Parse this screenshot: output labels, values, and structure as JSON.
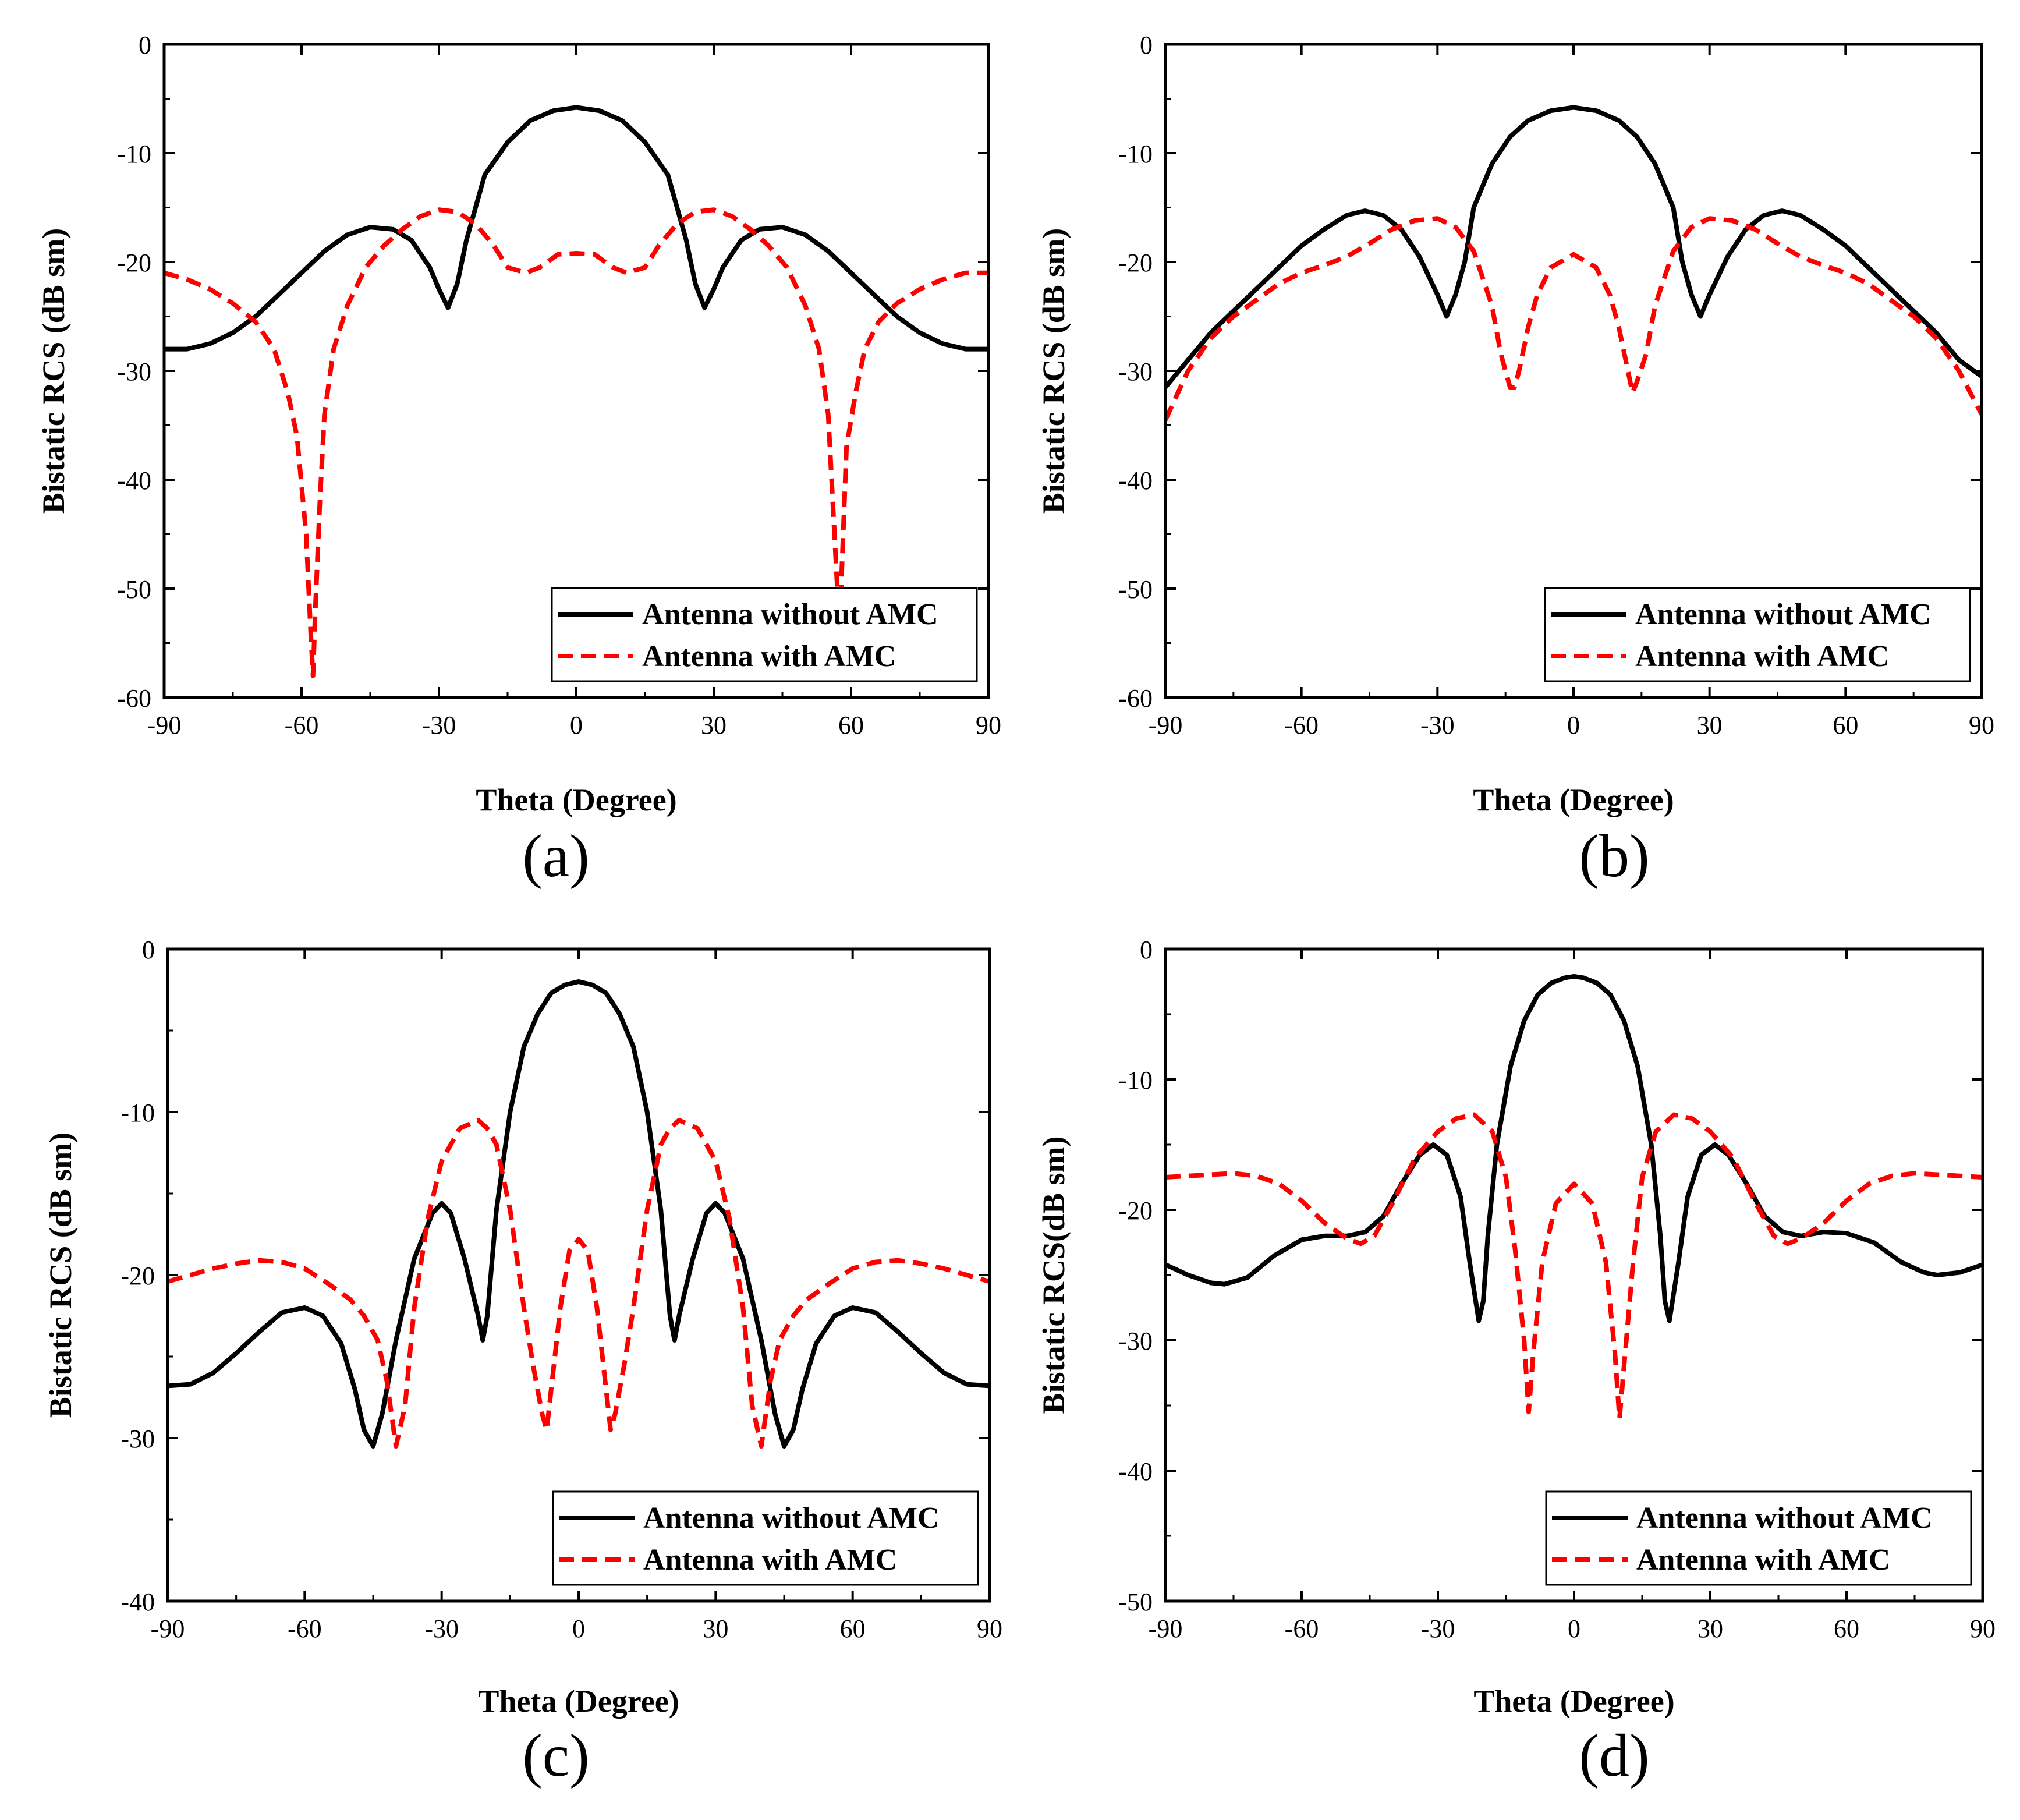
{
  "chart_data": [
    {
      "type": "line",
      "panel_label": "(a)",
      "xlabel": "Theta (Degree)",
      "ylabel": "Bistatic RCS (dB sm)",
      "xlim": [
        -90,
        90
      ],
      "ylim": [
        -60,
        0
      ],
      "xticks": [
        -90,
        -60,
        -30,
        0,
        30,
        60,
        90
      ],
      "yticks": [
        0,
        -10,
        -20,
        -30,
        -40,
        -50,
        -60
      ],
      "legend_position": "bottom-right",
      "series": [
        {
          "name": "Antenna without AMC",
          "color": "#000000",
          "dash": "solid",
          "x": [
            -90,
            -85,
            -80,
            -75,
            -70,
            -65,
            -60,
            -55,
            -50,
            -45,
            -40,
            -36,
            -32,
            -30,
            -28,
            -26,
            -24,
            -22,
            -20,
            -15,
            -10,
            -5,
            0,
            5,
            10,
            15,
            20,
            22,
            24,
            26,
            28,
            30,
            32,
            36,
            40,
            45,
            50,
            55,
            60,
            65,
            70,
            75,
            80,
            85,
            90
          ],
          "y": [
            -28,
            -28,
            -27.5,
            -26.5,
            -25,
            -23,
            -21,
            -19,
            -17.5,
            -16.8,
            -17,
            -18,
            -20.5,
            -22.5,
            -24.2,
            -22,
            -18,
            -15,
            -12,
            -9,
            -7,
            -6.1,
            -5.8,
            -6.1,
            -7,
            -9,
            -12,
            -15,
            -18,
            -22,
            -24.2,
            -22.5,
            -20.5,
            -18,
            -17,
            -16.8,
            -17.5,
            -19,
            -21,
            -23,
            -25,
            -26.5,
            -27.5,
            -28,
            -28
          ]
        },
        {
          "name": "Antenna with AMC",
          "color": "#ff0000",
          "dash": "dashed",
          "x": [
            -90,
            -85,
            -80,
            -75,
            -70,
            -66,
            -63,
            -61,
            -59,
            -58,
            -57.5,
            -57,
            -56,
            -55,
            -53,
            -50,
            -46,
            -42,
            -38,
            -34,
            -30,
            -26,
            -22,
            -18,
            -15,
            -11,
            -8,
            -4,
            0,
            4,
            8,
            11,
            15,
            18,
            22,
            26,
            30,
            34,
            38,
            42,
            46,
            50,
            53,
            55,
            56,
            57,
            57.5,
            58,
            59,
            61,
            63,
            66,
            70,
            75,
            80,
            85,
            90
          ],
          "y": [
            -21,
            -21.6,
            -22.5,
            -23.8,
            -25.5,
            -28,
            -32,
            -36,
            -45,
            -54,
            -58,
            -52,
            -42,
            -34,
            -28,
            -24,
            -20.5,
            -18.5,
            -17,
            -15.8,
            -15.2,
            -15.4,
            -16.5,
            -18.5,
            -20.5,
            -21,
            -20.5,
            -19.3,
            -19.2,
            -19.3,
            -20.5,
            -21,
            -20.5,
            -18.5,
            -16.5,
            -15.4,
            -15.2,
            -15.8,
            -17,
            -18.5,
            -20.5,
            -24,
            -28,
            -34,
            -42,
            -50,
            -54,
            -48,
            -37,
            -32,
            -28,
            -25.5,
            -23.8,
            -22.5,
            -21.6,
            -21,
            -21
          ]
        }
      ]
    },
    {
      "type": "line",
      "panel_label": "(b)",
      "xlabel": "Theta (Degree)",
      "ylabel": "Bistatic RCS (dB sm)",
      "xlim": [
        -90,
        90
      ],
      "ylim": [
        -60,
        0
      ],
      "xticks": [
        -90,
        -60,
        -30,
        0,
        30,
        60,
        90
      ],
      "yticks": [
        0,
        -10,
        -20,
        -30,
        -40,
        -50,
        -60
      ],
      "legend_position": "bottom-right",
      "series": [
        {
          "name": "Antenna without AMC",
          "color": "#000000",
          "dash": "solid",
          "x": [
            -90,
            -85,
            -80,
            -75,
            -70,
            -65,
            -60,
            -55,
            -50,
            -46,
            -42,
            -38,
            -34,
            -30,
            -28,
            -26,
            -24,
            -22,
            -18,
            -14,
            -10,
            -5,
            0,
            5,
            10,
            14,
            18,
            22,
            24,
            26,
            28,
            30,
            34,
            38,
            42,
            46,
            50,
            55,
            60,
            65,
            70,
            75,
            80,
            85,
            90
          ],
          "y": [
            -31.5,
            -29,
            -26.5,
            -24.5,
            -22.5,
            -20.5,
            -18.5,
            -17,
            -15.7,
            -15.3,
            -15.7,
            -17,
            -19.5,
            -23,
            -25,
            -23,
            -20,
            -15,
            -11,
            -8.5,
            -7,
            -6.1,
            -5.8,
            -6.1,
            -7,
            -8.5,
            -11,
            -15,
            -20,
            -23,
            -25,
            -23,
            -19.5,
            -17,
            -15.7,
            -15.3,
            -15.7,
            -17,
            -18.5,
            -20.5,
            -22.5,
            -24.5,
            -26.5,
            -29,
            -30.5
          ]
        },
        {
          "name": "Antenna with AMC",
          "color": "#ff0000",
          "dash": "dashed",
          "x": [
            -90,
            -85,
            -80,
            -75,
            -70,
            -65,
            -60,
            -55,
            -50,
            -45,
            -40,
            -35,
            -30,
            -26,
            -22,
            -18,
            -16,
            -14,
            -13,
            -12,
            -10,
            -8,
            -5,
            0,
            5,
            8,
            10,
            12,
            13,
            14,
            16,
            18,
            22,
            26,
            30,
            35,
            40,
            45,
            50,
            55,
            60,
            65,
            70,
            75,
            80,
            85,
            90
          ],
          "y": [
            -34.5,
            -30,
            -27,
            -25,
            -23.5,
            -22,
            -21,
            -20.3,
            -19.5,
            -18.3,
            -17,
            -16.2,
            -16,
            -16.8,
            -19,
            -24,
            -28.5,
            -31.5,
            -31.5,
            -30,
            -26,
            -23,
            -20.5,
            -19.3,
            -20.5,
            -23,
            -26,
            -30,
            -32,
            -31,
            -28.5,
            -24,
            -19,
            -16.8,
            -16,
            -16.2,
            -17,
            -18.3,
            -19.5,
            -20.3,
            -21,
            -22,
            -23.5,
            -25,
            -27,
            -30,
            -34
          ]
        }
      ]
    },
    {
      "type": "line",
      "panel_label": "(c)",
      "xlabel": "Theta (Degree)",
      "ylabel": "Bistatic RCS (dB sm)",
      "xlim": [
        -90,
        90
      ],
      "ylim": [
        -40,
        0
      ],
      "xticks": [
        -90,
        -60,
        -30,
        0,
        30,
        60,
        90
      ],
      "yticks": [
        0,
        -10,
        -20,
        -30,
        -40
      ],
      "legend_position": "bottom-right",
      "series": [
        {
          "name": "Antenna without AMC",
          "color": "#000000",
          "dash": "solid",
          "x": [
            -90,
            -85,
            -80,
            -75,
            -70,
            -65,
            -60,
            -56,
            -52,
            -49,
            -47,
            -45,
            -43,
            -40,
            -36,
            -32,
            -30,
            -28,
            -25,
            -22,
            -21,
            -20,
            -18,
            -15,
            -12,
            -9,
            -6,
            -3,
            0,
            3,
            6,
            9,
            12,
            15,
            18,
            20,
            21,
            22,
            25,
            28,
            30,
            32,
            36,
            40,
            43,
            45,
            47,
            49,
            52,
            56,
            60,
            65,
            70,
            75,
            80,
            85,
            90
          ],
          "y": [
            -26.8,
            -26.7,
            -26,
            -24.8,
            -23.5,
            -22.3,
            -22,
            -22.5,
            -24.2,
            -27,
            -29.5,
            -30.5,
            -28.5,
            -24,
            -19,
            -16.2,
            -15.6,
            -16.2,
            -19,
            -22.5,
            -24,
            -22.5,
            -16,
            -10,
            -6,
            -4,
            -2.7,
            -2.2,
            -2,
            -2.2,
            -2.7,
            -4,
            -6,
            -10,
            -16,
            -22.5,
            -24,
            -22.5,
            -19,
            -16.2,
            -15.6,
            -16.2,
            -19,
            -24,
            -28.5,
            -30.5,
            -29.5,
            -27,
            -24.2,
            -22.5,
            -22,
            -22.3,
            -23.5,
            -24.8,
            -26,
            -26.7,
            -26.8
          ]
        },
        {
          "name": "Antenna with AMC",
          "color": "#ff0000",
          "dash": "dashed",
          "x": [
            -90,
            -85,
            -80,
            -75,
            -70,
            -65,
            -60,
            -55,
            -50,
            -47,
            -44,
            -42,
            -40,
            -38,
            -36,
            -33,
            -30,
            -26,
            -22,
            -20,
            -18,
            -15,
            -12,
            -10,
            -8,
            -7,
            -6,
            -4,
            -2,
            0,
            2,
            4,
            6,
            7,
            8,
            10,
            12,
            15,
            18,
            20,
            22,
            26,
            30,
            33,
            36,
            38,
            40,
            42,
            44,
            47,
            50,
            55,
            60,
            65,
            70,
            75,
            80,
            85,
            90
          ],
          "y": [
            -20.4,
            -20,
            -19.6,
            -19.3,
            -19.1,
            -19.2,
            -19.6,
            -20.5,
            -21.5,
            -22.5,
            -24,
            -26.5,
            -30.5,
            -28,
            -22,
            -16.5,
            -13,
            -11,
            -10.5,
            -11,
            -12,
            -16,
            -22,
            -25.5,
            -28.5,
            -29.5,
            -27,
            -22,
            -18.5,
            -17.8,
            -18.5,
            -22,
            -27,
            -29.5,
            -28.5,
            -25.5,
            -22,
            -16,
            -12,
            -11,
            -10.5,
            -11,
            -13,
            -16.5,
            -22,
            -28,
            -30.5,
            -26.5,
            -24,
            -22.5,
            -21.5,
            -20.5,
            -19.6,
            -19.2,
            -19.1,
            -19.3,
            -19.6,
            -20,
            -20.4
          ]
        }
      ]
    },
    {
      "type": "line",
      "panel_label": "(d)",
      "xlabel": "Theta (Degree)",
      "ylabel": "Bistatic RCS(dB sm)",
      "xlim": [
        -90,
        90
      ],
      "ylim": [
        -50,
        0
      ],
      "xticks": [
        -90,
        -60,
        -30,
        0,
        30,
        60,
        90
      ],
      "yticks": [
        0,
        -10,
        -20,
        -30,
        -40,
        -50
      ],
      "legend_position": "bottom-right",
      "series": [
        {
          "name": "Antenna without AMC",
          "color": "#000000",
          "dash": "solid",
          "x": [
            -90,
            -85,
            -80,
            -77,
            -72,
            -66,
            -60,
            -55,
            -50,
            -46,
            -42,
            -38,
            -34,
            -31,
            -28,
            -25,
            -23,
            -21,
            -20,
            -19,
            -17,
            -14,
            -11,
            -8,
            -5,
            -2,
            0,
            2,
            5,
            8,
            11,
            14,
            17,
            19,
            20,
            21,
            23,
            25,
            28,
            31,
            34,
            38,
            42,
            46,
            50,
            55,
            60,
            66,
            72,
            77,
            80,
            85,
            90
          ],
          "y": [
            -24.2,
            -25,
            -25.6,
            -25.7,
            -25.2,
            -23.5,
            -22.3,
            -22,
            -22,
            -21.7,
            -20.5,
            -18,
            -15.8,
            -15,
            -15.8,
            -19,
            -24,
            -28.5,
            -27,
            -22,
            -15,
            -9,
            -5.5,
            -3.5,
            -2.6,
            -2.2,
            -2.1,
            -2.2,
            -2.6,
            -3.5,
            -5.5,
            -9,
            -15,
            -22,
            -27,
            -28.5,
            -24,
            -19,
            -15.8,
            -15,
            -15.8,
            -18,
            -20.5,
            -21.7,
            -22,
            -21.7,
            -21.8,
            -22.5,
            -24,
            -24.8,
            -25,
            -24.8,
            -24.2
          ]
        },
        {
          "name": "Antenna with AMC",
          "color": "#ff0000",
          "dash": "dashed",
          "x": [
            -90,
            -85,
            -80,
            -75,
            -70,
            -65,
            -60,
            -55,
            -50,
            -47,
            -44,
            -40,
            -35,
            -30,
            -26,
            -22,
            -18,
            -15,
            -13,
            -11,
            -10,
            -9,
            -7,
            -4,
            0,
            4,
            7,
            9,
            10,
            11,
            13,
            15,
            18,
            22,
            26,
            30,
            35,
            40,
            44,
            47,
            50,
            55,
            60,
            65,
            70,
            75,
            80,
            85,
            90
          ],
          "y": [
            -17.5,
            -17.4,
            -17.3,
            -17.2,
            -17.4,
            -18,
            -19.3,
            -21,
            -22.2,
            -22.6,
            -22,
            -19.5,
            -16,
            -14,
            -13,
            -12.7,
            -14,
            -17.5,
            -23,
            -30,
            -35.5,
            -31,
            -24,
            -19.5,
            -18,
            -19.5,
            -24,
            -31,
            -36,
            -32,
            -24,
            -17.5,
            -14,
            -12.7,
            -13,
            -14,
            -16,
            -19.5,
            -22,
            -22.6,
            -22.2,
            -21,
            -19.3,
            -18,
            -17.4,
            -17.2,
            -17.3,
            -17.4,
            -17.5
          ]
        }
      ]
    }
  ]
}
